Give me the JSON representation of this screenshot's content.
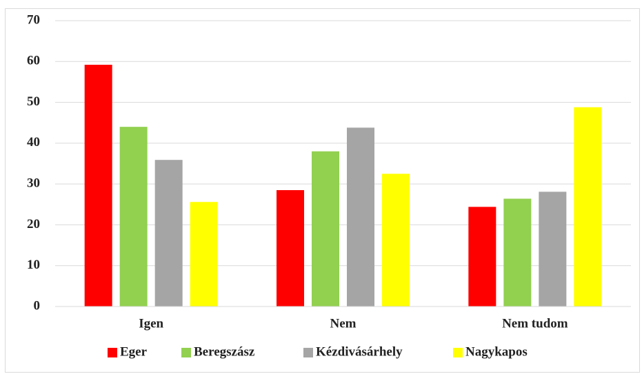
{
  "chart_data": {
    "type": "bar",
    "categories": [
      "Igen",
      "Nem",
      "Nem tudom"
    ],
    "series": [
      {
        "name": "Eger",
        "color": "#ff0000",
        "values": [
          59.2,
          28.5,
          24.4
        ]
      },
      {
        "name": "Beregszász",
        "color": "#92d050",
        "values": [
          44.0,
          38.0,
          26.4
        ]
      },
      {
        "name": "Kézdivásárhely",
        "color": "#a5a5a5",
        "values": [
          35.9,
          43.8,
          28.1
        ]
      },
      {
        "name": "Nagykapos",
        "color": "#ffff00",
        "values": [
          25.6,
          32.5,
          48.8
        ]
      }
    ],
    "ylim": [
      0,
      70
    ],
    "yticks": [
      0,
      10,
      20,
      30,
      40,
      50,
      60,
      70
    ],
    "grid": true,
    "legend": "bottom"
  }
}
